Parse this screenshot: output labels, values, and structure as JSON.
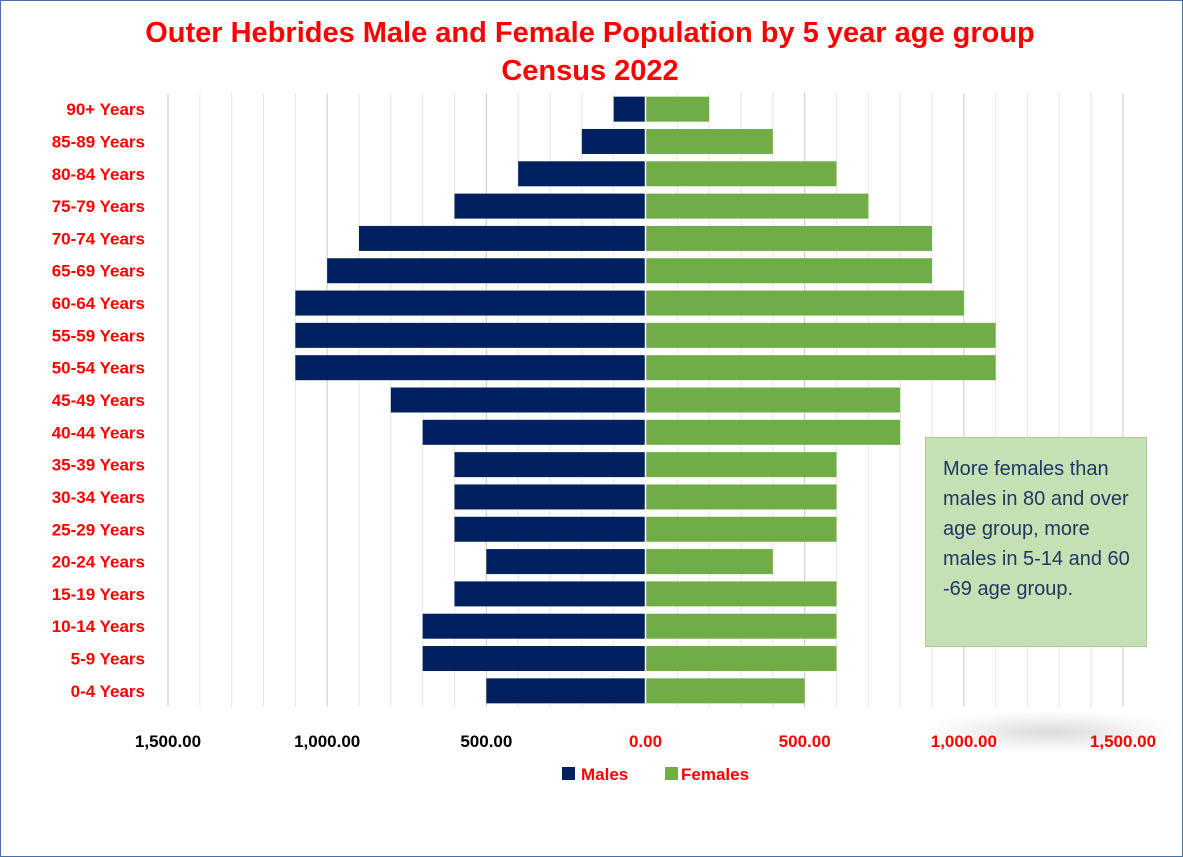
{
  "chart_data": {
    "type": "bar",
    "title": "Outer Hebrides Male and Female Population by 5 year age group Census 2022",
    "categories": [
      "90+ Years",
      "85-89 Years",
      "80-84 Years",
      "75-79 Years",
      "70-74 Years",
      "65-69 Years",
      "60-64 Years",
      "55-59 Years",
      "50-54 Years",
      "45-49 Years",
      "40-44 Years",
      "35-39 Years",
      "30-34 Years",
      "25-29 Years",
      "20-24 Years",
      "15-19 Years",
      "10-14 Years",
      "5-9 Years",
      "0-4 Years"
    ],
    "series": [
      {
        "name": "Males",
        "color": "#002060",
        "values": [
          100,
          200,
          400,
          600,
          900,
          1000,
          1100,
          1100,
          1100,
          800,
          700,
          600,
          600,
          600,
          500,
          600,
          700,
          700,
          500
        ]
      },
      {
        "name": "Females",
        "color": "#70ad47",
        "values": [
          200,
          400,
          600,
          700,
          900,
          900,
          1000,
          1100,
          1100,
          800,
          800,
          600,
          600,
          600,
          400,
          600,
          600,
          600,
          500
        ]
      }
    ],
    "xlim": [
      -1500,
      1500
    ],
    "x_ticks": [
      -1500,
      -1000,
      -500,
      0,
      500,
      1000,
      1500
    ],
    "x_tick_labels": [
      "1,500.00",
      "1,000.00",
      "500.00",
      "0.00",
      "500.00",
      "1,000.00",
      "1,500.00"
    ],
    "grid": true,
    "legend_position": "bottom",
    "annotation": "More females than males in 80 and over age group, more males in 5-14 and 60 -69 age group."
  },
  "colors": {
    "title": "#ff0000",
    "category_labels": "#ff0000",
    "males": "#002060",
    "females": "#70ad47",
    "annotation_bg": "#c5e0b3",
    "annotation_text": "#1f3864"
  }
}
